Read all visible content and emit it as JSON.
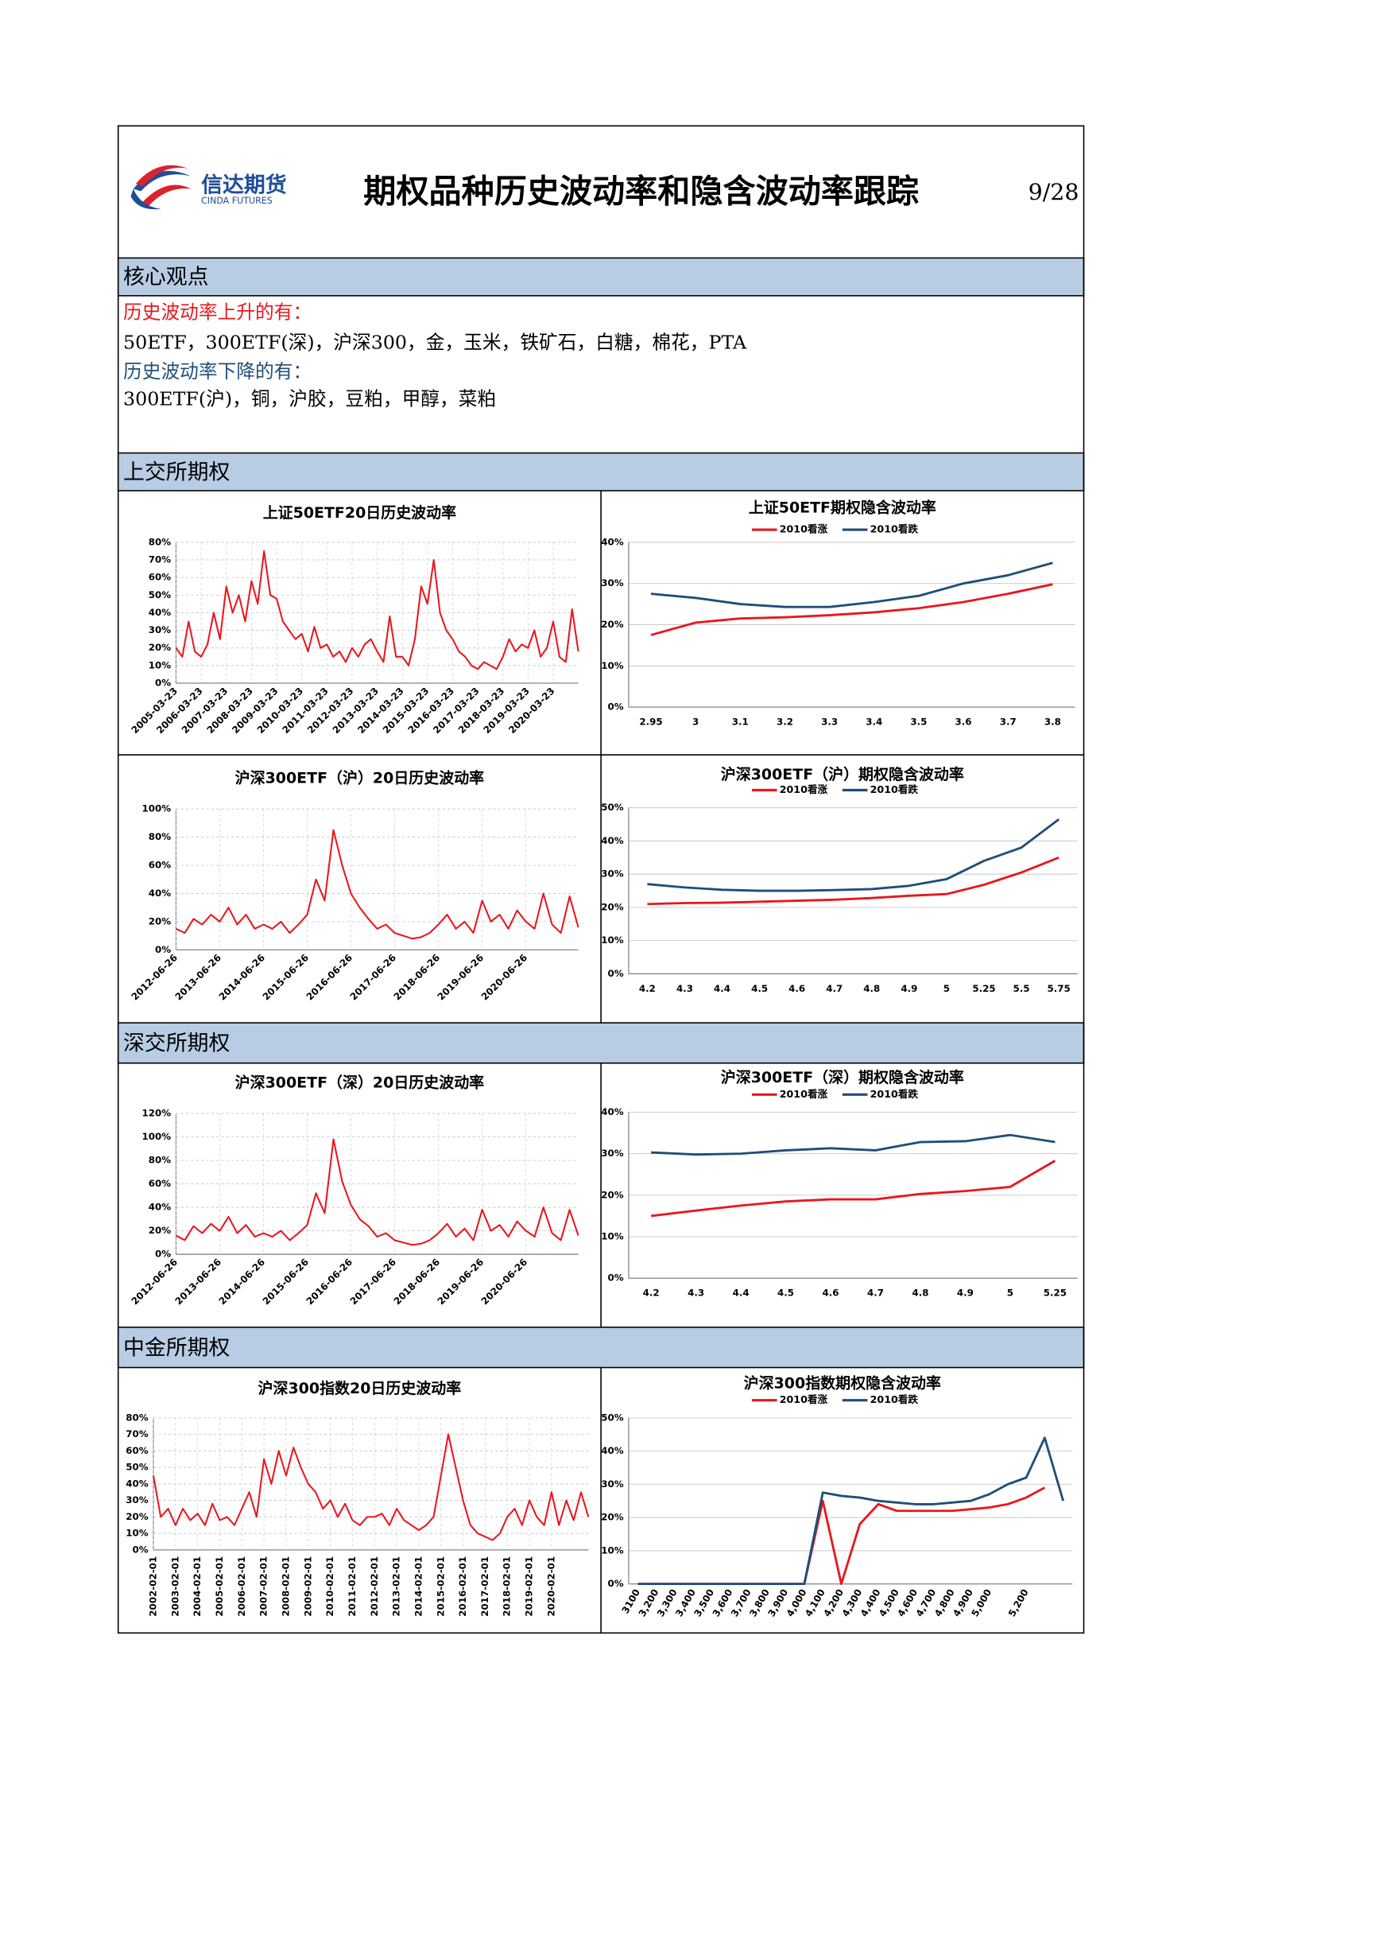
{
  "header": {
    "logo_cn": "信达期货",
    "logo_en": "CINDA FUTURES",
    "title": "期权品种历史波动率和隐含波动率跟踪",
    "page": "9/28"
  },
  "core": {
    "heading": "核心观点",
    "up_label": "历史波动率上升的有：",
    "up_items": "50ETF，300ETF(深)，沪深300，金，玉米，铁矿石，白糖，棉花，PTA",
    "down_label": "历史波动率下降的有：",
    "down_items": "300ETF(沪)，铜，沪胶，豆粕，甲醇，菜粕"
  },
  "sections": [
    "上交所期权",
    "深交所期权",
    "中金所期权"
  ],
  "chart_data": [
    {
      "type": "line",
      "title": "上证50ETF20日历史波动率",
      "categories": [
        "2005-03-23",
        null,
        null,
        null,
        "2006-03-23",
        null,
        null,
        null,
        "2007-03-23",
        null,
        null,
        null,
        "2008-03-23",
        null,
        null,
        null,
        "2009-03-23",
        null,
        null,
        null,
        "2010-03-23",
        null,
        null,
        null,
        "2011-03-23",
        null,
        null,
        null,
        "2012-03-23",
        null,
        null,
        null,
        "2013-03-23",
        null,
        null,
        null,
        "2014-03-23",
        null,
        null,
        null,
        "2015-03-23",
        null,
        null,
        null,
        "2016-03-23",
        null,
        null,
        null,
        "2017-03-23",
        null,
        null,
        null,
        "2018-03-23",
        null,
        null,
        null,
        "2019-03-23",
        null,
        null,
        null,
        "2020-03-23",
        null,
        null,
        null,
        null
      ],
      "series": [
        {
          "color": "#e8171f",
          "values": [
            20,
            15,
            35,
            18,
            15,
            22,
            40,
            25,
            55,
            40,
            50,
            35,
            58,
            45,
            75,
            50,
            48,
            35,
            30,
            25,
            28,
            18,
            32,
            20,
            22,
            15,
            18,
            12,
            20,
            15,
            22,
            25,
            18,
            12,
            38,
            15,
            15,
            10,
            25,
            55,
            45,
            70,
            40,
            30,
            25,
            18,
            15,
            10,
            8,
            12,
            10,
            8,
            15,
            25,
            18,
            22,
            20,
            30,
            15,
            20,
            35,
            15,
            12,
            42,
            18
          ]
        }
      ],
      "ylim": [
        0,
        80
      ],
      "yticks": [
        {
          "value": 0,
          "label": "0%"
        },
        {
          "value": 10,
          "label": "10%"
        },
        {
          "value": 20,
          "label": "20%"
        },
        {
          "value": 30,
          "label": "30%"
        },
        {
          "value": 40,
          "label": "40%"
        },
        {
          "value": 50,
          "label": "50%"
        },
        {
          "value": 60,
          "label": "60%"
        },
        {
          "value": 70,
          "label": "70%"
        },
        {
          "value": 80,
          "label": "80%"
        }
      ],
      "grid": true
    },
    {
      "type": "line",
      "title": "上证50ETF期权隐含波动率",
      "categories": [
        "2.95",
        "3",
        "3.1",
        "3.2",
        "3.3",
        "3.4",
        "3.5",
        "3.6",
        "3.7",
        "3.8"
      ],
      "series": [
        {
          "name": "2010看涨",
          "color": "#e8171f",
          "values": [
            17.5,
            20.5,
            21.5,
            21.8,
            22.3,
            23,
            24,
            25.5,
            27.5,
            29.8
          ]
        },
        {
          "name": "2010看跌",
          "color": "#1f4e79",
          "values": [
            27.5,
            26.5,
            25,
            24.3,
            24.3,
            25.5,
            27,
            30,
            32,
            35
          ]
        }
      ],
      "ylim": [
        0,
        40
      ],
      "yticks": [
        {
          "value": 0,
          "label": "0%"
        },
        {
          "value": 10,
          "label": "10%"
        },
        {
          "value": 20,
          "label": "20%"
        },
        {
          "value": 30,
          "label": "30%"
        },
        {
          "value": 40,
          "label": "40%"
        }
      ],
      "grid": true
    },
    {
      "type": "line",
      "title": "沪深300ETF（沪）20日历史波动率",
      "categories": [
        "2012-06-26",
        null,
        null,
        null,
        null,
        "2013-06-26",
        null,
        null,
        null,
        null,
        "2014-06-26",
        null,
        null,
        null,
        null,
        "2015-06-26",
        null,
        null,
        null,
        null,
        "2016-06-26",
        null,
        null,
        null,
        null,
        "2017-06-26",
        null,
        null,
        null,
        null,
        "2018-06-26",
        null,
        null,
        null,
        null,
        "2019-06-26",
        null,
        null,
        null,
        null,
        "2020-06-26",
        null,
        null,
        null,
        null,
        null,
        null
      ],
      "series": [
        {
          "color": "#e8171f",
          "values": [
            15,
            12,
            22,
            18,
            25,
            20,
            30,
            18,
            25,
            15,
            18,
            15,
            20,
            12,
            18,
            25,
            50,
            35,
            85,
            60,
            40,
            30,
            22,
            15,
            18,
            12,
            10,
            8,
            9,
            12,
            18,
            25,
            15,
            20,
            12,
            35,
            20,
            25,
            15,
            28,
            20,
            15,
            40,
            18,
            12,
            38,
            16
          ]
        }
      ],
      "ylim": [
        0,
        100
      ],
      "yticks": [
        {
          "value": 0,
          "label": "0%"
        },
        {
          "value": 20,
          "label": "20%"
        },
        {
          "value": 40,
          "label": "40%"
        },
        {
          "value": 60,
          "label": "60%"
        },
        {
          "value": 80,
          "label": "80%"
        },
        {
          "value": 100,
          "label": "100%"
        }
      ],
      "grid": true
    },
    {
      "type": "line",
      "title": "沪深300ETF（沪）期权隐含波动率",
      "categories": [
        "4.2",
        "4.3",
        "4.4",
        "4.5",
        "4.6",
        "4.7",
        "4.8",
        "4.9",
        "5",
        "5.25",
        "5.5",
        "5.75"
      ],
      "series": [
        {
          "name": "2010看涨",
          "color": "#e8171f",
          "values": [
            21,
            21.3,
            21.4,
            21.7,
            22,
            22.3,
            22.8,
            23.5,
            24,
            26.8,
            30.5,
            35
          ]
        },
        {
          "name": "2010看跌",
          "color": "#1f4e79",
          "values": [
            27,
            26,
            25.3,
            25,
            25,
            25.2,
            25.5,
            26.5,
            28.5,
            34,
            38,
            46.5
          ]
        }
      ],
      "ylim": [
        0,
        50
      ],
      "yticks": [
        {
          "value": 0,
          "label": "0%"
        },
        {
          "value": 10,
          "label": "10%"
        },
        {
          "value": 20,
          "label": "20%"
        },
        {
          "value": 30,
          "label": "30%"
        },
        {
          "value": 40,
          "label": "40%"
        },
        {
          "value": 50,
          "label": "50%"
        }
      ],
      "grid": true
    },
    {
      "type": "line",
      "title": "沪深300ETF（深）20日历史波动率",
      "categories": [
        "2012-06-26",
        null,
        null,
        null,
        null,
        "2013-06-26",
        null,
        null,
        null,
        null,
        "2014-06-26",
        null,
        null,
        null,
        null,
        "2015-06-26",
        null,
        null,
        null,
        null,
        "2016-06-26",
        null,
        null,
        null,
        null,
        "2017-06-26",
        null,
        null,
        null,
        null,
        "2018-06-26",
        null,
        null,
        null,
        null,
        "2019-06-26",
        null,
        null,
        null,
        null,
        "2020-06-26",
        null,
        null,
        null,
        null,
        null,
        null
      ],
      "series": [
        {
          "color": "#e8171f",
          "values": [
            16,
            12,
            24,
            18,
            26,
            20,
            32,
            18,
            25,
            15,
            18,
            15,
            20,
            12,
            18,
            25,
            52,
            35,
            98,
            62,
            42,
            30,
            24,
            15,
            18,
            12,
            10,
            8,
            9,
            12,
            18,
            26,
            15,
            22,
            12,
            38,
            20,
            25,
            15,
            28,
            20,
            15,
            40,
            18,
            12,
            38,
            16
          ]
        }
      ],
      "ylim": [
        0,
        120
      ],
      "yticks": [
        {
          "value": 0,
          "label": "0%"
        },
        {
          "value": 20,
          "label": "20%"
        },
        {
          "value": 40,
          "label": "40%"
        },
        {
          "value": 60,
          "label": "60%"
        },
        {
          "value": 80,
          "label": "80%"
        },
        {
          "value": 100,
          "label": "100%"
        },
        {
          "value": 120,
          "label": "120%"
        }
      ],
      "grid": true
    },
    {
      "type": "line",
      "title": "沪深300ETF（深）期权隐含波动率",
      "categories": [
        "4.2",
        "4.3",
        "4.4",
        "4.5",
        "4.6",
        "4.7",
        "4.8",
        "4.9",
        "5",
        "5.25"
      ],
      "series": [
        {
          "name": "2010看涨",
          "color": "#e8171f",
          "values": [
            15,
            16.3,
            17.5,
            18.5,
            19,
            19,
            20.3,
            21,
            22,
            28.3
          ]
        },
        {
          "name": "2010看跌",
          "color": "#1f4e79",
          "values": [
            30.3,
            29.8,
            30,
            30.8,
            31.3,
            30.8,
            32.8,
            33,
            34.5,
            32.8
          ]
        }
      ],
      "ylim": [
        0,
        40
      ],
      "yticks": [
        {
          "value": 0,
          "label": "0%"
        },
        {
          "value": 10,
          "label": "10%"
        },
        {
          "value": 20,
          "label": "20%"
        },
        {
          "value": 30,
          "label": "30%"
        },
        {
          "value": 40,
          "label": "40%"
        }
      ],
      "grid": true
    },
    {
      "type": "line",
      "title": "沪深300指数20日历史波动率",
      "categories": [
        "2002-02-01",
        null,
        null,
        "2003-02-01",
        null,
        null,
        "2004-02-01",
        null,
        null,
        "2005-02-01",
        null,
        null,
        "2006-02-01",
        null,
        null,
        "2007-02-01",
        null,
        null,
        "2008-02-01",
        null,
        null,
        "2009-02-01",
        null,
        null,
        "2010-02-01",
        null,
        null,
        "2011-02-01",
        null,
        null,
        "2012-02-01",
        null,
        null,
        "2013-02-01",
        null,
        null,
        "2014-02-01",
        null,
        null,
        "2015-02-01",
        null,
        null,
        "2016-02-01",
        null,
        null,
        "2017-02-01",
        null,
        null,
        "2018-02-01",
        null,
        null,
        "2019-02-01",
        null,
        null,
        "2020-02-01",
        null,
        null,
        null,
        null,
        null
      ],
      "series": [
        {
          "color": "#e8171f",
          "values": [
            45,
            20,
            25,
            15,
            25,
            18,
            22,
            15,
            28,
            18,
            20,
            15,
            25,
            35,
            20,
            55,
            40,
            60,
            45,
            62,
            50,
            40,
            35,
            25,
            30,
            20,
            28,
            18,
            15,
            20,
            20,
            22,
            15,
            25,
            18,
            15,
            12,
            15,
            20,
            45,
            70,
            50,
            30,
            15,
            10,
            8,
            6,
            10,
            20,
            25,
            15,
            30,
            20,
            15,
            35,
            15,
            30,
            18,
            35,
            20
          ]
        }
      ],
      "ylim": [
        0,
        80
      ],
      "yticks": [
        {
          "value": 0,
          "label": "0%"
        },
        {
          "value": 10,
          "label": "10%"
        },
        {
          "value": 20,
          "label": "20%"
        },
        {
          "value": 30,
          "label": "30%"
        },
        {
          "value": 40,
          "label": "40%"
        },
        {
          "value": 50,
          "label": "50%"
        },
        {
          "value": 60,
          "label": "60%"
        },
        {
          "value": 70,
          "label": "70%"
        },
        {
          "value": 80,
          "label": "80%"
        }
      ],
      "grid": true
    },
    {
      "type": "line",
      "title": "沪深300指数期权隐含波动率",
      "categories": [
        "3100",
        "3,200",
        "3,300",
        "3,400",
        "3,500",
        "3,600",
        "3,700",
        "3,800",
        "3,900",
        "4,000",
        "4,100",
        "4,200",
        "4,300",
        "4,400",
        "4,500",
        "4,600",
        "4,700",
        "4,800",
        "4,900",
        "5,000",
        null,
        "5,200",
        null,
        null
      ],
      "series": [
        {
          "name": "2010看涨",
          "color": "#e8171f",
          "values": [
            0,
            0,
            0,
            0,
            0,
            0,
            0,
            0,
            0,
            0,
            25,
            0,
            18,
            24,
            22,
            22,
            22,
            22,
            22.5,
            23,
            24,
            26,
            29,
            null
          ]
        },
        {
          "name": "2010看跌",
          "color": "#1f4e79",
          "values": [
            0,
            0,
            0,
            0,
            0,
            0,
            0,
            0,
            0,
            0,
            27.5,
            26.5,
            26,
            25,
            24.5,
            24,
            24,
            24.5,
            25,
            27,
            30,
            32,
            44,
            25
          ]
        }
      ],
      "ylim": [
        0,
        50
      ],
      "yticks": [
        {
          "value": 0,
          "label": "0%"
        },
        {
          "value": 10,
          "label": "10%"
        },
        {
          "value": 20,
          "label": "20%"
        },
        {
          "value": 30,
          "label": "30%"
        },
        {
          "value": 40,
          "label": "40%"
        },
        {
          "value": 50,
          "label": "50%"
        }
      ],
      "grid": true
    }
  ]
}
